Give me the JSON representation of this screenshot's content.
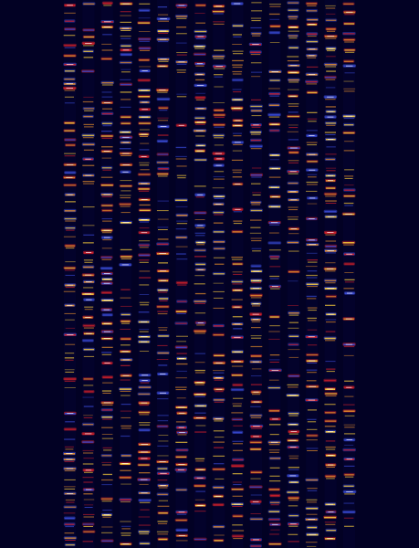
{
  "image": {
    "kind": "electrophoresis-gel-lanes",
    "background_color": "#020124",
    "lane_count": 16,
    "band_colors": {
      "core": "#ffffff",
      "hot": "#ffd23a",
      "warm": "#e8902a",
      "red": "#d2202a",
      "cool": "#3a4bd6"
    }
  }
}
